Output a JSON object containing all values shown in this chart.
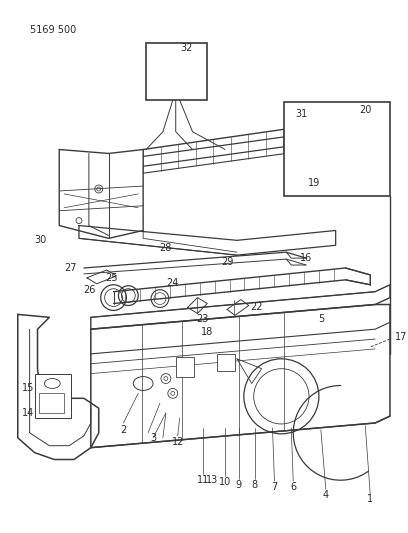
{
  "title": "5169 500",
  "bg": "#ffffff",
  "lc": "#3a3a3a",
  "tc": "#2a2a2a",
  "fw": 4.08,
  "fh": 5.33,
  "dpi": 100
}
